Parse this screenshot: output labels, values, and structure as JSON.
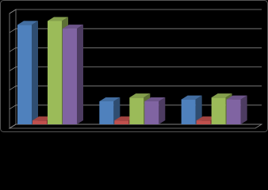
{
  "chart_data": {
    "type": "bar3d",
    "categories": [
      null,
      null,
      null
    ],
    "series": [
      {
        "color": "#4f81bd",
        "values": [
          5.2,
          1.2,
          1.3
        ]
      },
      {
        "color": "#c0504d",
        "values": [
          0.2,
          0.2,
          0.2
        ]
      },
      {
        "color": "#9bbb59",
        "values": [
          5.4,
          1.4,
          1.4
        ]
      },
      {
        "color": "#8064a2",
        "values": [
          5.0,
          1.2,
          1.3
        ]
      }
    ],
    "ylim": [
      0,
      6
    ],
    "yticks": [
      0,
      1,
      2,
      3,
      4,
      5,
      6
    ],
    "grid": true
  }
}
